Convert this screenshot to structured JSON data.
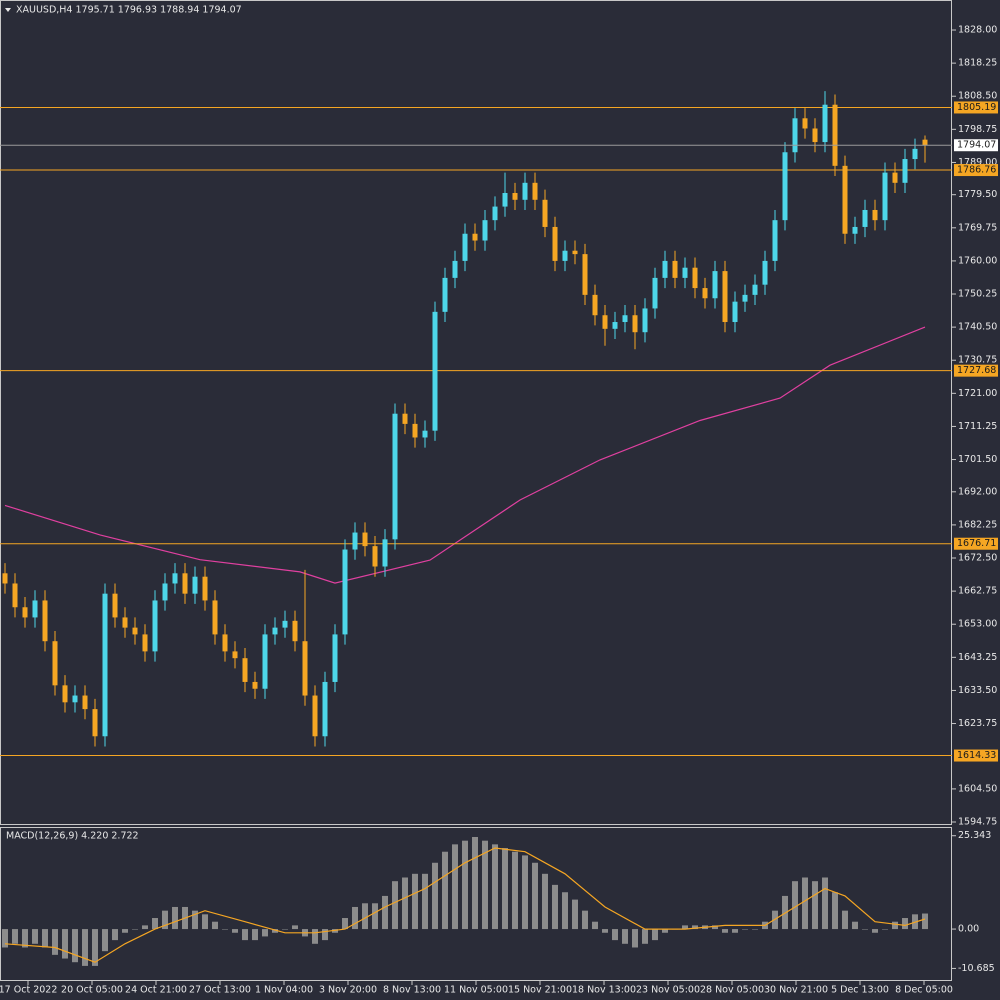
{
  "chart_data": {
    "type": "candlestick",
    "header": "XAUUSD,H4  1795.71 1796.93 1788.94 1794.07",
    "up_color": "#4dd6e8",
    "down_color": "#f5a623",
    "ylim": [
      1593.87,
      1836.84
    ],
    "yticks": [
      {
        "value": 1828,
        "label": "1828.00"
      },
      1818.25,
      {
        "value": 1808.5,
        "label": "1808.50"
      },
      1798.75,
      {
        "value": 1789,
        "label": "1789.00"
      },
      {
        "value": 1779.5,
        "label": "1779.50"
      },
      1769.75,
      {
        "value": 1760,
        "label": "1760.00"
      },
      1750.25,
      {
        "value": 1740.5,
        "label": "1740.50"
      },
      1730.75,
      {
        "value": 1721,
        "label": "1721.00"
      },
      1711.25,
      {
        "value": 1701.5,
        "label": "1701.50"
      },
      {
        "value": 1692,
        "label": "1692.00"
      },
      1682.25,
      {
        "value": 1672.5,
        "label": "1672.50"
      },
      1662.75,
      {
        "value": 1653,
        "label": "1653.00"
      },
      1643.25,
      {
        "value": 1633.5,
        "label": "1633.50"
      },
      1623.75,
      {
        "value": 1604.5,
        "label": "1604.50"
      },
      1594.75
    ],
    "levels": [
      1805.19,
      1786.76,
      1727.68,
      1676.71,
      1614.33
    ],
    "level_color": "#f5a623",
    "current_price": 1794.07,
    "xlabels": [
      "17 Oct 2022",
      "20 Oct 05:00",
      "24 Oct 21:00",
      "27 Oct 13:00",
      "1 Nov 04:00",
      "3 Nov 20:00",
      "8 Nov 13:00",
      "11 Nov 05:00",
      "15 Nov 21:00",
      "18 Nov 13:00",
      "23 Nov 05:00",
      "28 Nov 05:00",
      "30 Nov 21:00",
      "5 Dec 13:00",
      "8 Dec 05:00"
    ],
    "candles": [
      [
        1668,
        1671,
        1662,
        1665
      ],
      [
        1665,
        1668,
        1655,
        1658
      ],
      [
        1658,
        1661,
        1652,
        1655
      ],
      [
        1655,
        1663,
        1652,
        1660
      ],
      [
        1660,
        1663,
        1645,
        1648
      ],
      [
        1648,
        1651,
        1632,
        1635
      ],
      [
        1635,
        1638,
        1627,
        1630
      ],
      [
        1630,
        1635,
        1627,
        1632
      ],
      [
        1632,
        1635,
        1625,
        1628
      ],
      [
        1628,
        1631,
        1617,
        1620
      ],
      [
        1620,
        1665,
        1617,
        1662
      ],
      [
        1662,
        1665,
        1652,
        1655
      ],
      [
        1655,
        1658,
        1649,
        1652
      ],
      [
        1652,
        1655,
        1647,
        1650
      ],
      [
        1650,
        1653,
        1642,
        1645
      ],
      [
        1645,
        1663,
        1642,
        1660
      ],
      [
        1660,
        1668,
        1657,
        1665
      ],
      [
        1665,
        1671,
        1662,
        1668
      ],
      [
        1668,
        1671,
        1659,
        1662
      ],
      [
        1662,
        1670,
        1659,
        1667
      ],
      [
        1667,
        1670,
        1657,
        1660
      ],
      [
        1660,
        1663,
        1647,
        1650
      ],
      [
        1650,
        1653,
        1642,
        1645
      ],
      [
        1645,
        1648,
        1640,
        1643
      ],
      [
        1643,
        1646,
        1633,
        1636
      ],
      [
        1636,
        1639,
        1631,
        1634
      ],
      [
        1634,
        1653,
        1631,
        1650
      ],
      [
        1650,
        1655,
        1647,
        1652
      ],
      [
        1652,
        1657,
        1649,
        1654
      ],
      [
        1654,
        1657,
        1645,
        1648
      ],
      [
        1648,
        1669,
        1629,
        1632
      ],
      [
        1632,
        1635,
        1617,
        1620
      ],
      [
        1620,
        1639,
        1617,
        1636
      ],
      [
        1636,
        1653,
        1633,
        1650
      ],
      [
        1650,
        1678,
        1647,
        1675
      ],
      [
        1675,
        1683,
        1672,
        1680
      ],
      [
        1680,
        1683,
        1673,
        1676
      ],
      [
        1676,
        1679,
        1667,
        1670
      ],
      [
        1670,
        1681,
        1667,
        1678
      ],
      [
        1678,
        1718,
        1675,
        1715
      ],
      [
        1715,
        1718,
        1709,
        1712
      ],
      [
        1712,
        1715,
        1705,
        1708
      ],
      [
        1708,
        1713,
        1705,
        1710
      ],
      [
        1710,
        1748,
        1707,
        1745
      ],
      [
        1745,
        1758,
        1742,
        1755
      ],
      [
        1755,
        1763,
        1752,
        1760
      ],
      [
        1760,
        1771,
        1757,
        1768
      ],
      [
        1768,
        1771,
        1763,
        1766
      ],
      [
        1766,
        1775,
        1763,
        1772
      ],
      [
        1772,
        1779,
        1769,
        1776
      ],
      [
        1776,
        1786,
        1773,
        1780
      ],
      [
        1780,
        1783,
        1775,
        1778
      ],
      [
        1778,
        1786,
        1775,
        1783
      ],
      [
        1783,
        1786,
        1775,
        1778
      ],
      [
        1778,
        1781,
        1767,
        1770
      ],
      [
        1770,
        1773,
        1757,
        1760
      ],
      [
        1760,
        1766,
        1757,
        1763
      ],
      [
        1763,
        1766,
        1759,
        1762
      ],
      [
        1762,
        1765,
        1747,
        1750
      ],
      [
        1750,
        1753,
        1741,
        1744
      ],
      [
        1744,
        1747,
        1735,
        1740
      ],
      [
        1740,
        1745,
        1737,
        1742
      ],
      [
        1742,
        1747,
        1739,
        1744
      ],
      [
        1744,
        1747,
        1734,
        1739
      ],
      [
        1739,
        1749,
        1736,
        1746
      ],
      [
        1746,
        1758,
        1743,
        1755
      ],
      [
        1755,
        1763,
        1752,
        1760
      ],
      [
        1760,
        1763,
        1752,
        1755
      ],
      [
        1755,
        1761,
        1752,
        1758
      ],
      [
        1758,
        1761,
        1749,
        1752
      ],
      [
        1752,
        1755,
        1746,
        1749
      ],
      [
        1749,
        1760,
        1746,
        1757
      ],
      [
        1757,
        1760,
        1739,
        1742
      ],
      [
        1742,
        1751,
        1739,
        1748
      ],
      [
        1748,
        1753,
        1745,
        1750
      ],
      [
        1750,
        1756,
        1747,
        1753
      ],
      [
        1753,
        1763,
        1750,
        1760
      ],
      [
        1760,
        1775,
        1757,
        1772
      ],
      [
        1772,
        1795,
        1769,
        1792
      ],
      [
        1792,
        1805,
        1789,
        1802
      ],
      [
        1802,
        1805,
        1796,
        1799
      ],
      [
        1799,
        1802,
        1792,
        1795
      ],
      [
        1795,
        1810,
        1792,
        1806
      ],
      [
        1806,
        1809,
        1785,
        1788
      ],
      [
        1788,
        1791,
        1765,
        1768
      ],
      [
        1768,
        1773,
        1765,
        1770
      ],
      [
        1770,
        1778,
        1767,
        1775
      ],
      [
        1775,
        1778,
        1769,
        1772
      ],
      [
        1772,
        1789,
        1769,
        1786
      ],
      [
        1786,
        1789,
        1780,
        1783
      ],
      [
        1783,
        1793,
        1780,
        1790
      ],
      [
        1790,
        1796,
        1787,
        1793
      ],
      [
        1795.71,
        1796.93,
        1788.94,
        1794.07
      ]
    ],
    "ma": {
      "color": "#e040a0",
      "x": [
        0,
        9.5,
        19.5,
        29.5,
        33,
        42.5,
        51.5,
        59.5,
        69.5,
        77.5,
        82.5,
        92
      ],
      "values": [
        1688,
        1679.3,
        1672,
        1668.4,
        1665.1,
        1671.9,
        1689.6,
        1701.4,
        1713,
        1719.6,
        1729.3,
        1740.5
      ]
    },
    "macd": {
      "label": "MACD(12,26,9) 4.220 2.722",
      "ylim": [
        -14.1,
        27.44
      ],
      "yticks": [
        25.343,
        {
          "value": 0,
          "label": "0.00"
        },
        -10.685
      ],
      "bar_color": "#8c8c8c",
      "signal_color": "#f5a623",
      "histogram": [
        -5,
        -4,
        -5,
        -4,
        -5,
        -7,
        -8,
        -9,
        -10,
        -10,
        -6,
        -3,
        -1,
        0,
        1,
        3,
        5,
        6,
        6,
        5,
        4,
        2,
        0,
        -1,
        -3,
        -3,
        -2,
        -1,
        0,
        1,
        -2,
        -4,
        -3,
        -1,
        3,
        6,
        7,
        7,
        9,
        13,
        14,
        15,
        15,
        18,
        21,
        23,
        24,
        25,
        24,
        23,
        22,
        21,
        20,
        18,
        15,
        12,
        10,
        8,
        5,
        2,
        -1,
        -3,
        -4,
        -5,
        -4,
        -3,
        -1,
        0,
        1,
        1,
        1,
        1,
        -1,
        -1,
        0,
        0,
        2,
        5,
        9,
        13,
        14,
        13,
        14,
        10,
        5,
        2,
        0,
        -1,
        0,
        2,
        3,
        4,
        4.22
      ],
      "signal_x": [
        0,
        5,
        9,
        12,
        15,
        20,
        24,
        28,
        31,
        34,
        38,
        42,
        46,
        49,
        52,
        56,
        60,
        64,
        68,
        72,
        76,
        79,
        82,
        84,
        87,
        90,
        92
      ],
      "signal": [
        -4,
        -5,
        -9,
        -4,
        0,
        5,
        2,
        -1,
        -1,
        0,
        6,
        11,
        18,
        22,
        21,
        15,
        6,
        0,
        0,
        1,
        1,
        6,
        11,
        9,
        2,
        1,
        2.722
      ]
    }
  }
}
